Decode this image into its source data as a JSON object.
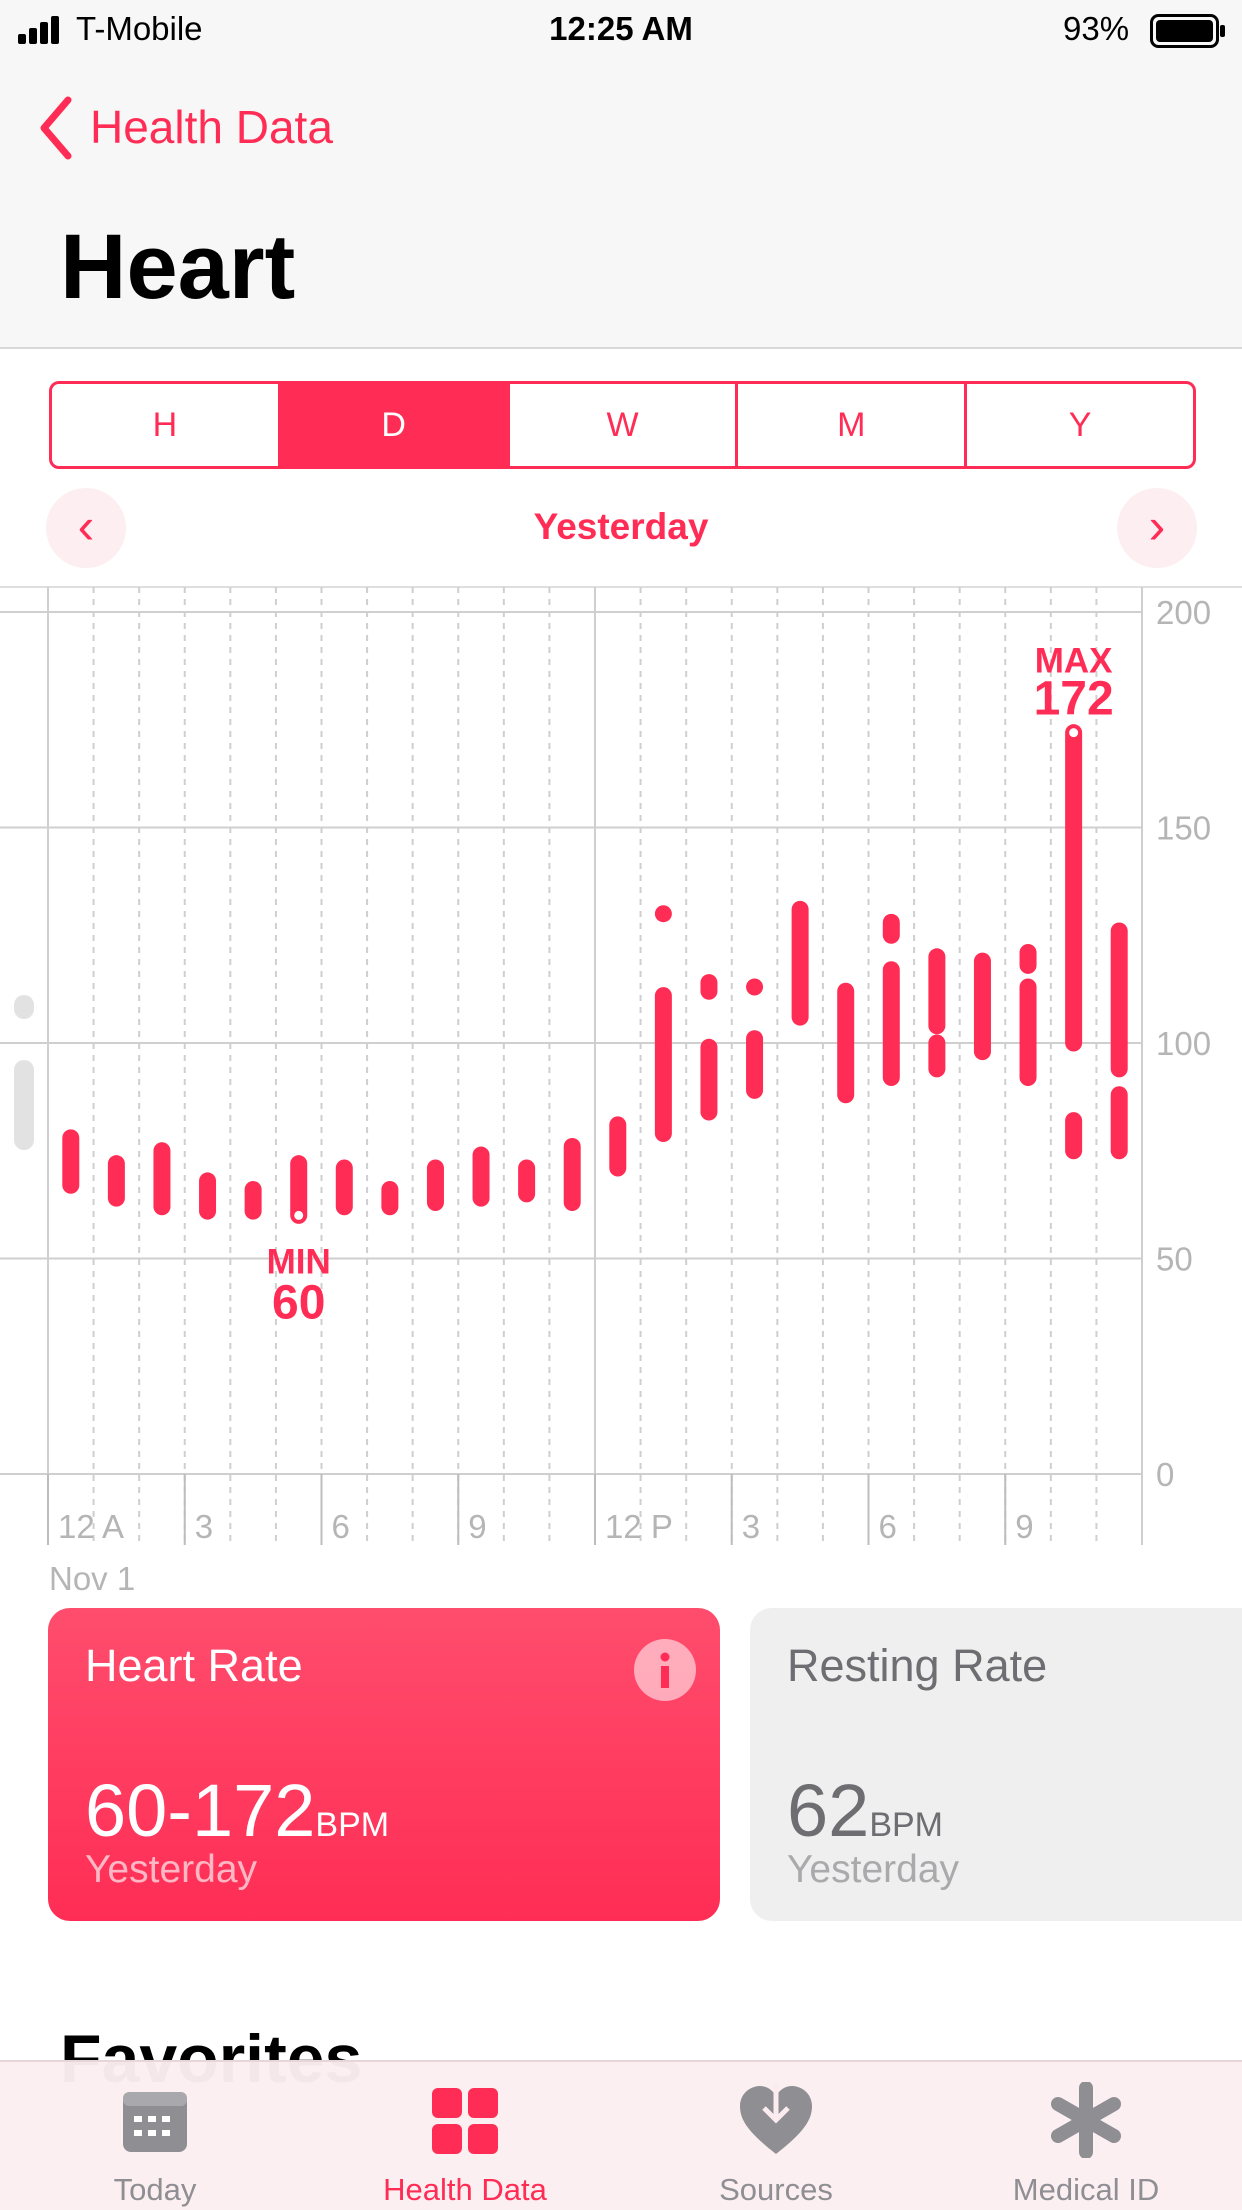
{
  "status_bar": {
    "carrier": "T-Mobile",
    "time": "12:25 AM",
    "battery": "93%"
  },
  "nav": {
    "back": "Health Data",
    "title": "Heart"
  },
  "segments": [
    "H",
    "D",
    "W",
    "M",
    "Y"
  ],
  "selected_segment": 1,
  "period": "Yesterday",
  "chart_data": {
    "type": "range",
    "color": "#ff2d55",
    "x": [
      0,
      1,
      2,
      3,
      4,
      5,
      6,
      7,
      8,
      9,
      10,
      11,
      12,
      13,
      13,
      14,
      14,
      15,
      15,
      16,
      17,
      18,
      18,
      19,
      19,
      20,
      21,
      21,
      22,
      22,
      23,
      23
    ],
    "low": [
      67,
      64,
      62,
      61,
      61,
      60,
      62,
      62,
      63,
      64,
      65,
      63,
      71,
      79,
      130,
      84,
      112,
      89,
      113,
      106,
      88,
      92,
      125,
      94,
      104,
      98,
      92,
      118,
      100,
      75,
      94,
      75
    ],
    "high": [
      78,
      72,
      75,
      68,
      66,
      72,
      71,
      66,
      71,
      74,
      71,
      76,
      81,
      111,
      130,
      99,
      114,
      101,
      113,
      131,
      112,
      117,
      128,
      100,
      120,
      119,
      113,
      121,
      172,
      82,
      126,
      88
    ],
    "xlim": [
      0,
      24
    ],
    "xticks": [
      {
        "value": 0,
        "label": "12 A"
      },
      3,
      6,
      9,
      {
        "value": 12,
        "label": "12 P"
      },
      {
        "value": 15,
        "label": "3"
      },
      {
        "value": 18,
        "label": "6"
      },
      {
        "value": 21,
        "label": "9"
      }
    ],
    "ylim": [
      0,
      200
    ],
    "yticks": [
      0,
      50,
      100,
      150,
      200
    ],
    "grid": true,
    "annotations": [
      {
        "label": "MIN",
        "x": 5,
        "value": 60,
        "side": "below"
      },
      {
        "label": "MAX",
        "x": 22,
        "value": 172,
        "side": "above"
      }
    ],
    "date_label": "Nov 1"
  },
  "cards": [
    {
      "title": "Heart Rate",
      "value": "60-172",
      "unit": "BPM",
      "period": "Yesterday"
    },
    {
      "title": "Resting Rate",
      "value": "62",
      "unit": "BPM",
      "period": "Yesterday"
    }
  ],
  "section": "Favorites",
  "tabs": [
    "Today",
    "Health Data",
    "Sources",
    "Medical ID"
  ]
}
